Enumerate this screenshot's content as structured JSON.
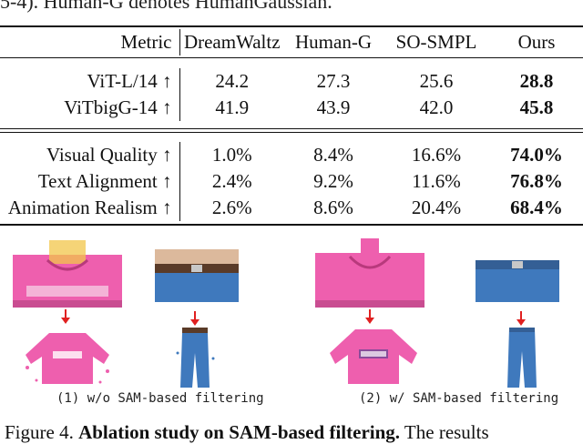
{
  "top_caption": "5-4). Human-G denotes HumanGaussian.",
  "table": {
    "header": {
      "metric": "Metric",
      "methods": [
        "DreamWaltz",
        "Human-G",
        "SO-SMPL",
        "Ours"
      ]
    },
    "clip_rows": [
      {
        "metric": "ViT-L/14 ↑",
        "values": [
          "24.2",
          "27.3",
          "25.6",
          "28.8"
        ]
      },
      {
        "metric": "ViTbigG-14 ↑",
        "values": [
          "41.9",
          "43.9",
          "42.0",
          "45.8"
        ]
      }
    ],
    "user_rows": [
      {
        "metric": "Visual Quality ↑",
        "values": [
          "1.0%",
          "8.4%",
          "16.6%",
          "74.0%"
        ]
      },
      {
        "metric": "Text Alignment ↑",
        "values": [
          "2.4%",
          "9.2%",
          "11.6%",
          "76.8%"
        ]
      },
      {
        "metric": "Animation Realism ↑",
        "values": [
          "2.6%",
          "8.6%",
          "20.4%",
          "68.4%"
        ]
      }
    ]
  },
  "figure": {
    "left_caption": "(1) w/o SAM-based filtering",
    "right_caption": "(2) w/ SAM-based filtering"
  },
  "figure_caption": {
    "prefix": "Figure 4.",
    "bold": "Ablation study on SAM-based filtering.",
    "rest": "The results"
  },
  "colors": {
    "hoodie": "#ee5fae",
    "jeans": "#3f79bd",
    "arrow": "#e02020"
  }
}
